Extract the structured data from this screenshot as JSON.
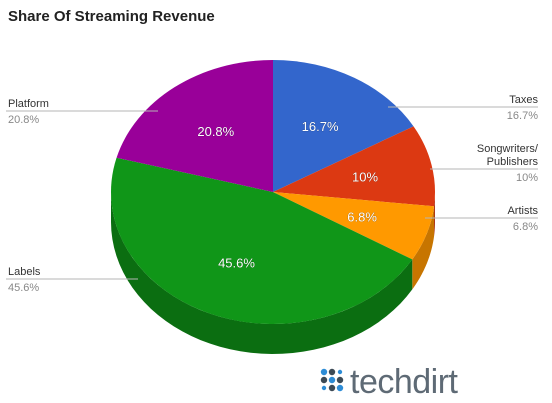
{
  "chart_data": {
    "type": "pie",
    "title": "Share Of Streaming Revenue",
    "start": "top",
    "direction": "clockwise",
    "slices": [
      {
        "name": "Taxes",
        "name_lines": [
          "Taxes"
        ],
        "value": 16.7,
        "pct_label": "16.7%",
        "side_label": "16.7%",
        "color": "#3366cc",
        "side_color": "#27509f"
      },
      {
        "name": "Songwriters/ Publishers",
        "name_lines": [
          "Songwriters/",
          "Publishers"
        ],
        "value": 10,
        "pct_label": "10%",
        "side_label": "10%",
        "color": "#dc3912",
        "side_color": "#a82a0d"
      },
      {
        "name": "Artists",
        "name_lines": [
          "Artists"
        ],
        "value": 6.8,
        "pct_label": "6.8%",
        "side_label": "6.8%",
        "color": "#ff9900",
        "side_color": "#c77500"
      },
      {
        "name": "Labels",
        "name_lines": [
          "Labels"
        ],
        "value": 45.6,
        "pct_label": "45.6%",
        "side_label": "45.6%",
        "color": "#109618",
        "side_color": "#0b6e11"
      },
      {
        "name": "Platform",
        "name_lines": [
          "Platform"
        ],
        "value": 20.8,
        "pct_label": "20.8%",
        "side_label": "20.8%",
        "color": "#990099",
        "side_color": "#6e006e"
      }
    ]
  },
  "watermark": {
    "text": "techdirt",
    "color": "#5e6a75",
    "dot_color": "#2d8cd6"
  }
}
